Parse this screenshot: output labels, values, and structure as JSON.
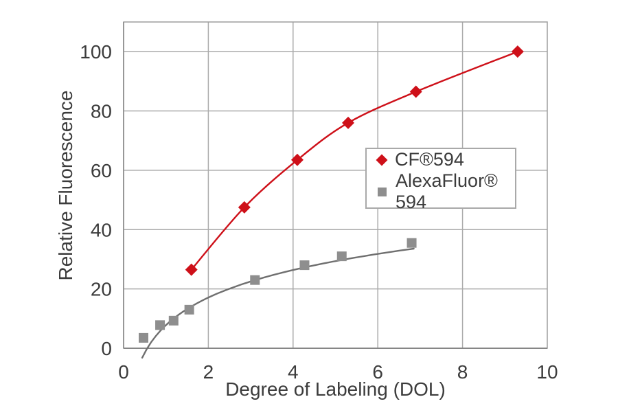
{
  "chart_data": {
    "type": "scatter",
    "title": "",
    "xlabel": "Degree of Labeling (DOL)",
    "ylabel": "Relative Fluorescence",
    "xlim": [
      0,
      10
    ],
    "ylim": [
      0,
      110
    ],
    "x_ticks": [
      0,
      2,
      4,
      6,
      8,
      10
    ],
    "y_ticks": [
      0,
      20,
      40,
      60,
      80,
      100
    ],
    "grid": true,
    "legend_position": "center-right-boxed",
    "colors": {
      "grid": "#ABABAB",
      "plot_border": "#9E9E9E",
      "axis_line": "#868686",
      "text": "#3C3C3C",
      "background": "#FFFFFF"
    },
    "series": [
      {
        "name": "CF®594",
        "marker": "diamond",
        "color": "#CE1019",
        "line": "smooth",
        "points": [
          [
            1.6,
            26.5
          ],
          [
            2.85,
            47.5
          ],
          [
            4.1,
            63.5
          ],
          [
            5.3,
            76
          ],
          [
            6.9,
            86.5
          ],
          [
            9.3,
            100
          ]
        ]
      },
      {
        "name": "AlexaFluor® 594",
        "marker": "square",
        "color": "#8E8E8E",
        "line": "log-trend",
        "line_color": "#6F6F6F",
        "trend": {
          "a": 13.4,
          "b": 7.8,
          "x_start": 0.44,
          "x_end": 6.85
        },
        "points": [
          [
            0.47,
            3.5
          ],
          [
            0.86,
            7.8
          ],
          [
            1.18,
            9.3
          ],
          [
            1.55,
            13
          ],
          [
            3.1,
            23
          ],
          [
            4.27,
            28
          ],
          [
            5.15,
            31
          ],
          [
            6.8,
            35.5
          ]
        ]
      }
    ]
  }
}
